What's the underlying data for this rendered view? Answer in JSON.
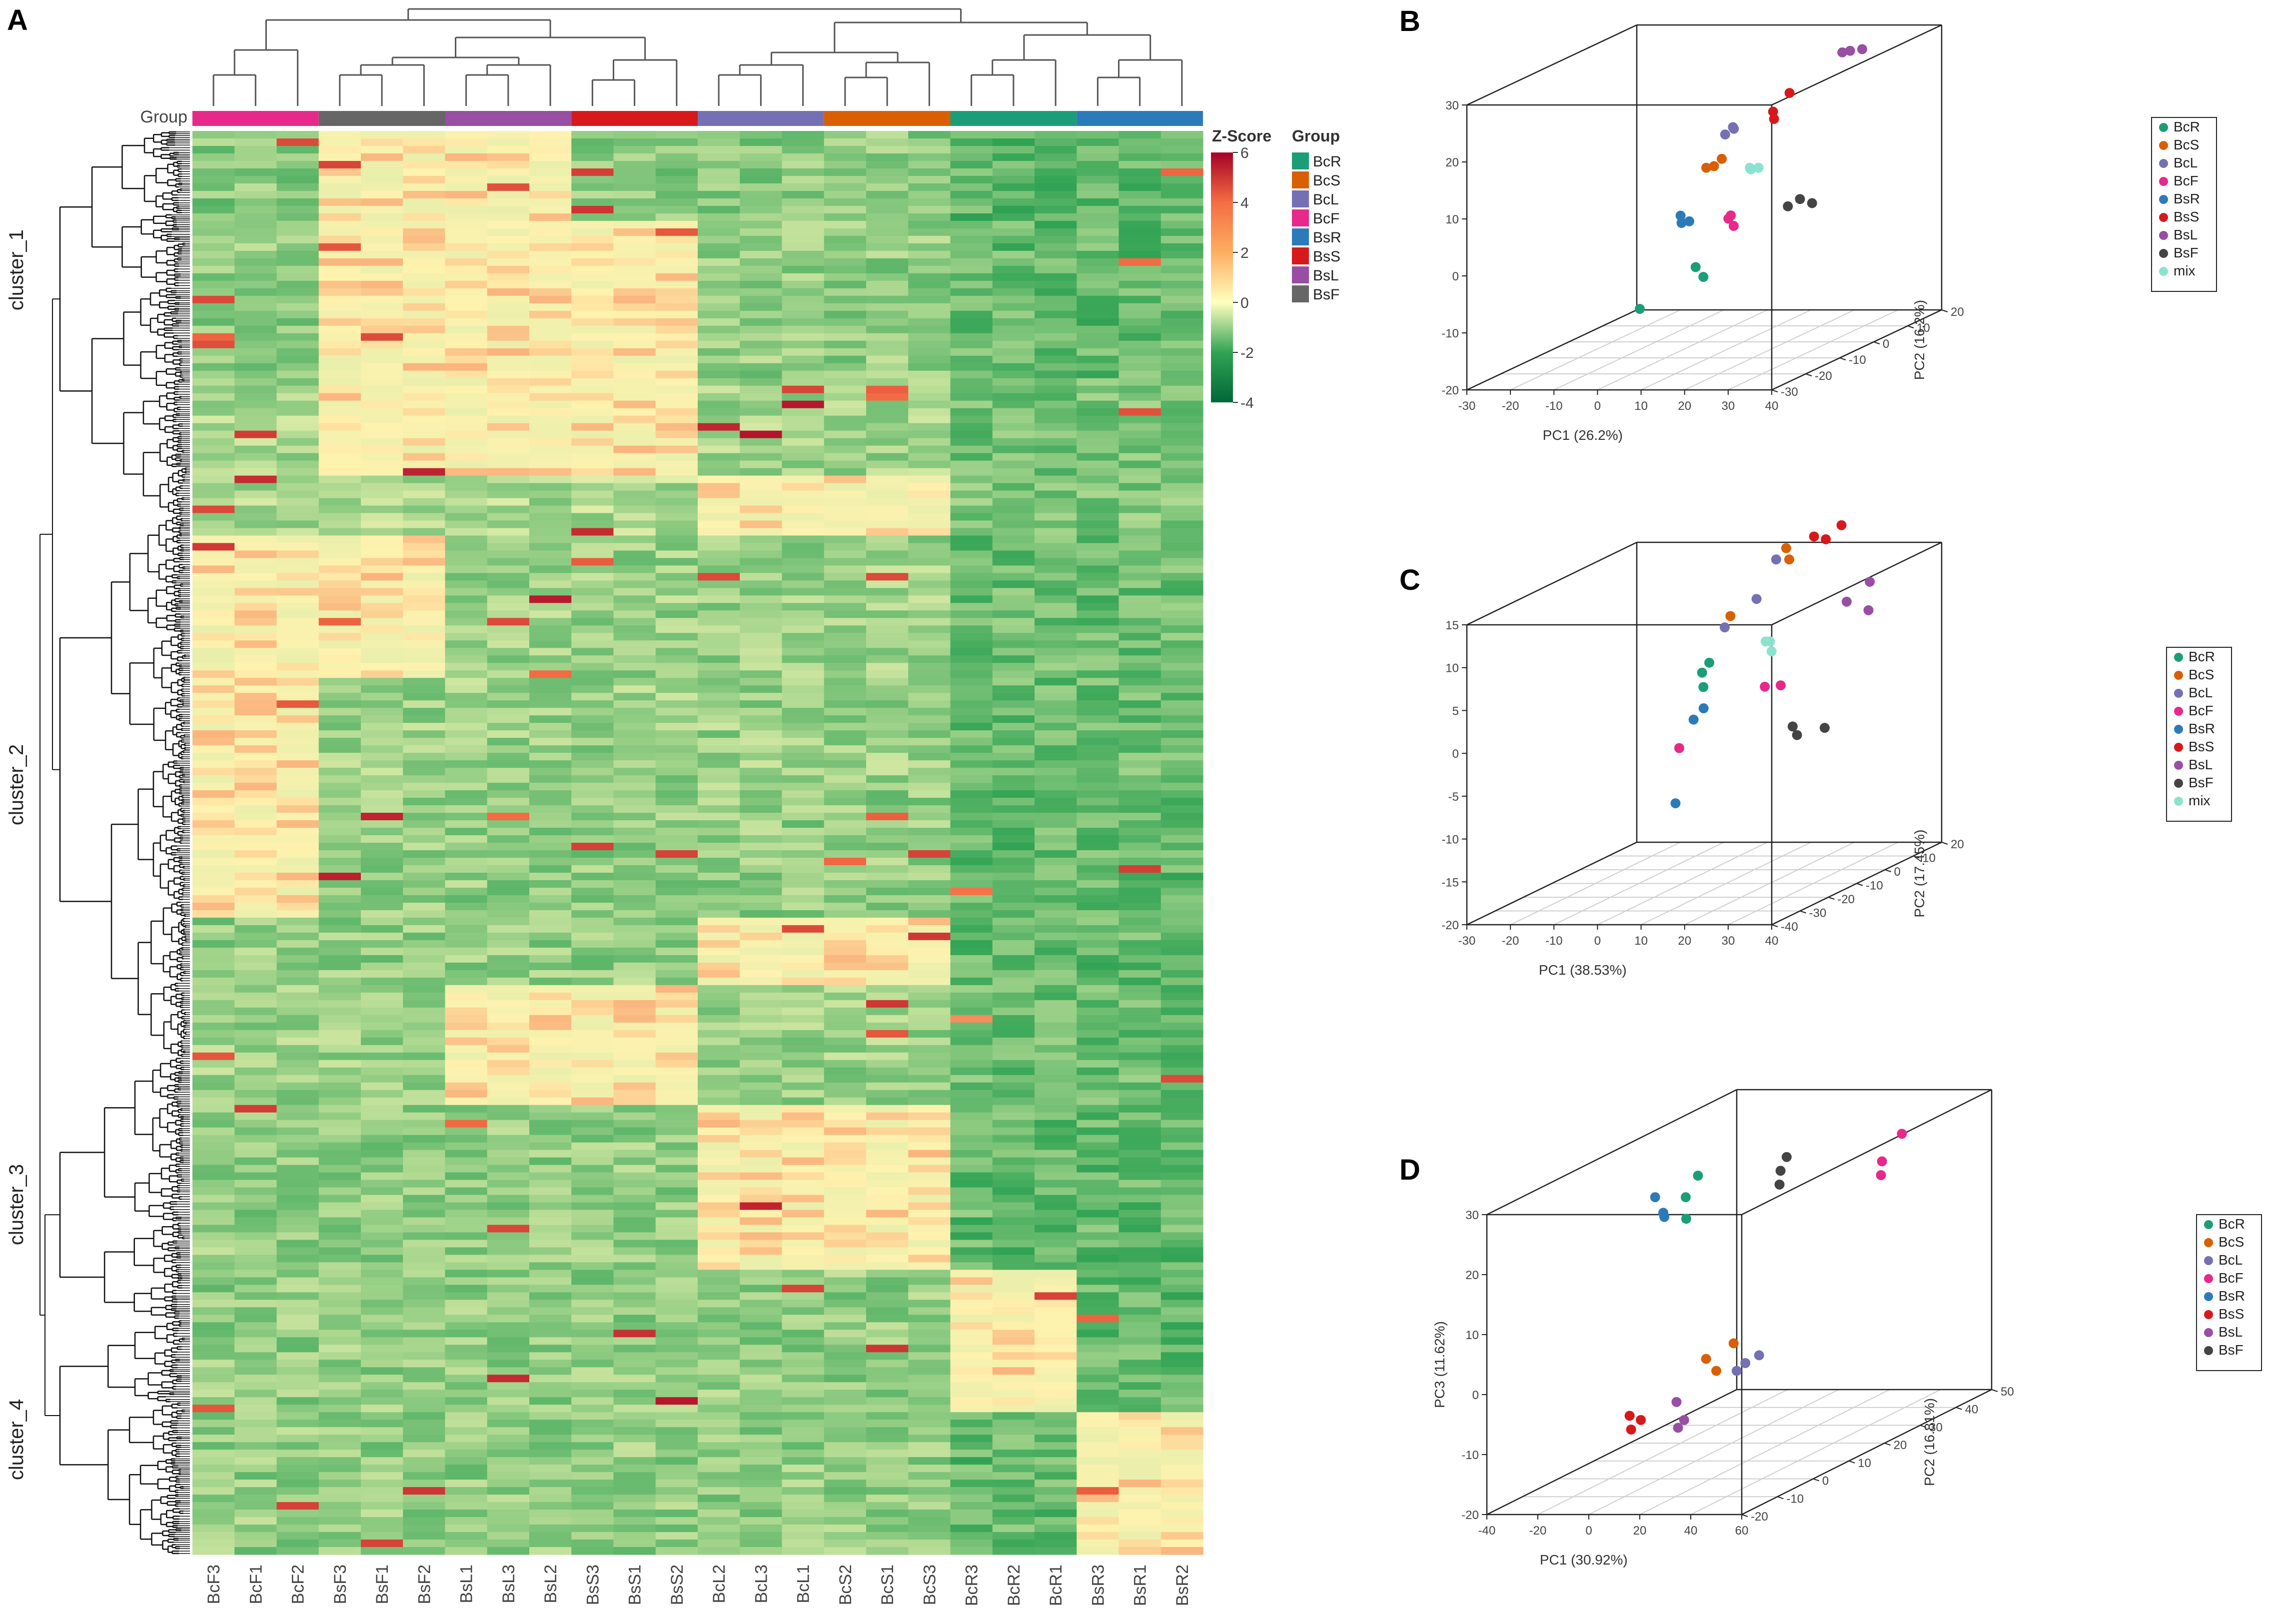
{
  "figure": {
    "panels": [
      "A",
      "B",
      "C",
      "D"
    ]
  },
  "chart_data": [
    {
      "panel": "A",
      "type": "heatmap",
      "title": "",
      "group_bar_label": "Group",
      "colorbar_title": "Z-Score",
      "colorbar_ticks": [
        6,
        4,
        2,
        0,
        -2,
        -4
      ],
      "colorbar_range": [
        -4,
        6
      ],
      "group_legend_title": "Group",
      "group_legend": [
        {
          "name": "BcR",
          "color": "#1b9e77"
        },
        {
          "name": "BcS",
          "color": "#d95f02"
        },
        {
          "name": "BcL",
          "color": "#7570b3"
        },
        {
          "name": "BcF",
          "color": "#e7298a"
        },
        {
          "name": "BsR",
          "color": "#2b7bba"
        },
        {
          "name": "BsS",
          "color": "#d7191c"
        },
        {
          "name": "BsL",
          "color": "#984ea3"
        },
        {
          "name": "BsF",
          "color": "#666666"
        }
      ],
      "column_groups": [
        "BcF",
        "BsF",
        "BsL",
        "BsS",
        "BcL",
        "BcS",
        "BcR",
        "BsR"
      ],
      "columns": [
        "BcF3",
        "BcF1",
        "BcF2",
        "BsF3",
        "BsF1",
        "BsF2",
        "BsL1",
        "BsL3",
        "BsL2",
        "BsS3",
        "BsS1",
        "BsS2",
        "BcL2",
        "BcL3",
        "BcL1",
        "BcS2",
        "BcS1",
        "BcS3",
        "BcR3",
        "BcR2",
        "BcR1",
        "BsR3",
        "BsR1",
        "BsR2"
      ],
      "row_clusters": [
        "cluster_1",
        "cluster_2",
        "cluster_3",
        "cluster_4"
      ]
    },
    {
      "panel": "B",
      "type": "scatter",
      "dims": 3,
      "xlabel": "PC1 (26.2%)",
      "ylabel": "PC2 (16.2%)",
      "zlabel": "",
      "xlim": [
        -30,
        40
      ],
      "xticks": [
        -30,
        -20,
        -10,
        0,
        10,
        20,
        30,
        40
      ],
      "ylim": [
        -30,
        20
      ],
      "yticks": [
        -30,
        -20,
        -10,
        0,
        10,
        20
      ],
      "zlim": [
        -20,
        30
      ],
      "zticks": [
        -20,
        -10,
        0,
        10,
        20,
        30
      ],
      "legend": [
        "BcR",
        "BcS",
        "BcL",
        "BcF",
        "BsR",
        "BsS",
        "BsL",
        "BsF",
        "mix"
      ],
      "series": [
        {
          "name": "BcR",
          "color": "#1b9e77",
          "points": [
            [
              -3,
              5,
              -10
            ],
            [
              -4,
              4,
              -8
            ],
            [
              -2,
              -15,
              -10
            ]
          ]
        },
        {
          "name": "BcS",
          "color": "#d95f02",
          "points": [
            [
              0,
              2,
              10
            ],
            [
              1,
              3,
              10
            ],
            [
              2,
              4,
              11
            ]
          ]
        },
        {
          "name": "BcL",
          "color": "#7570b3",
          "points": [
            [
              2,
              5,
              15
            ],
            [
              3,
              6,
              16
            ],
            [
              4,
              5,
              16
            ]
          ]
        },
        {
          "name": "BcF",
          "color": "#e7298a",
          "points": [
            [
              15,
              -10,
              5
            ],
            [
              16,
              -12,
              5
            ],
            [
              18,
              -13,
              4
            ]
          ]
        },
        {
          "name": "BsR",
          "color": "#2b7bba",
          "points": [
            [
              -2,
              -3,
              3
            ],
            [
              -1,
              -4,
              2
            ],
            [
              0,
              -3,
              2
            ]
          ]
        },
        {
          "name": "BsS",
          "color": "#d7191c",
          "points": [
            [
              13,
              5,
              19
            ],
            [
              14,
              4,
              18
            ],
            [
              16,
              6,
              22
            ]
          ]
        },
        {
          "name": "BsL",
          "color": "#984ea3",
          "points": [
            [
              25,
              10,
              28
            ],
            [
              26,
              11,
              28
            ],
            [
              28,
              12,
              28
            ]
          ]
        },
        {
          "name": "BsF",
          "color": "#444444",
          "points": [
            [
              32,
              -15,
              8
            ],
            [
              34,
              -14,
              9
            ],
            [
              36,
              -13,
              8
            ]
          ]
        },
        {
          "name": "mix",
          "color": "#8be3cf",
          "points": [
            [
              10,
              2,
              10
            ],
            [
              11,
              1,
              10
            ],
            [
              12,
              2,
              10
            ]
          ]
        }
      ]
    },
    {
      "panel": "C",
      "type": "scatter",
      "dims": 3,
      "xlabel": "PC1 (38.53%)",
      "ylabel": "PC2 (17.45%)",
      "zlabel": "",
      "xlim": [
        -30,
        40
      ],
      "xticks": [
        -30,
        -20,
        -10,
        0,
        10,
        20,
        30,
        40
      ],
      "ylim": [
        -40,
        20
      ],
      "yticks": [
        -40,
        -30,
        -20,
        -10,
        0,
        10,
        20
      ],
      "zlim": [
        -20,
        15
      ],
      "zticks": [
        -20,
        -15,
        -10,
        -5,
        0,
        5,
        10,
        15
      ],
      "legend": [
        "BcR",
        "BcS",
        "BcL",
        "BcF",
        "BsR",
        "BsS",
        "BsL",
        "BsF",
        "mix"
      ],
      "series": [
        {
          "name": "BcR",
          "color": "#1b9e77",
          "points": [
            [
              -3,
              2,
              1
            ],
            [
              -2,
              0,
              3
            ],
            [
              -1,
              1,
              4
            ]
          ]
        },
        {
          "name": "BcS",
          "color": "#d95f02",
          "points": [
            [
              -2,
              10,
              8
            ],
            [
              3,
              22,
              14
            ],
            [
              5,
              20,
              13
            ]
          ]
        },
        {
          "name": "BcL",
          "color": "#7570b3",
          "points": [
            [
              -2,
              8,
              7
            ],
            [
              2,
              20,
              13
            ],
            [
              4,
              10,
              10
            ]
          ]
        },
        {
          "name": "BcF",
          "color": "#e7298a",
          "points": [
            [
              -4,
              -5,
              -5
            ],
            [
              15,
              -4,
              2
            ],
            [
              18,
              -3,
              2
            ]
          ]
        },
        {
          "name": "BsR",
          "color": "#2b7bba",
          "points": [
            [
              -2,
              -3,
              -2
            ],
            [
              -1,
              -1,
              -1
            ],
            [
              1,
              -14,
              -10
            ]
          ]
        },
        {
          "name": "BsS",
          "color": "#d7191c",
          "points": [
            [
              12,
              18,
              16
            ],
            [
              16,
              16,
              16
            ],
            [
              17,
              20,
              17
            ]
          ]
        },
        {
          "name": "BsL",
          "color": "#984ea3",
          "points": [
            [
              26,
              8,
              10
            ],
            [
              30,
              10,
              12
            ],
            [
              31,
              8,
              9
            ]
          ]
        },
        {
          "name": "BsF",
          "color": "#444444",
          "points": [
            [
              24,
              -8,
              -2
            ],
            [
              25,
              -8,
              -3
            ],
            [
              32,
              -9,
              -2
            ]
          ]
        },
        {
          "name": "mix",
          "color": "#8be3cf",
          "points": [
            [
              10,
              4,
              6
            ],
            [
              11,
              4,
              6
            ],
            [
              12,
              3,
              5
            ]
          ]
        }
      ]
    },
    {
      "panel": "D",
      "type": "scatter",
      "dims": 3,
      "xlabel": "PC1 (30.92%)",
      "ylabel": "PC2 (16.81%)",
      "zlabel": "PC3 (11.62%)",
      "xlim": [
        -40,
        60
      ],
      "xticks": [
        -40,
        -20,
        0,
        20,
        40,
        60
      ],
      "ylim": [
        -20,
        50
      ],
      "yticks": [
        -20,
        -10,
        0,
        10,
        20,
        30,
        40,
        50
      ],
      "zlim": [
        -20,
        30
      ],
      "zticks": [
        -20,
        -10,
        0,
        10,
        20,
        30
      ],
      "legend": [
        "BcR",
        "BcS",
        "BcL",
        "BcF",
        "BsR",
        "BsS",
        "BsL",
        "BsF"
      ],
      "series": [
        {
          "name": "BcR",
          "color": "#1b9e77",
          "points": [
            [
              -18,
              20,
              21
            ],
            [
              -15,
              18,
              18
            ],
            [
              -16,
              22,
              24
            ]
          ]
        },
        {
          "name": "BcS",
          "color": "#d95f02",
          "points": [
            [
              18,
              0,
              0
            ],
            [
              22,
              0,
              -2
            ],
            [
              26,
              2,
              2
            ]
          ]
        },
        {
          "name": "BcL",
          "color": "#7570b3",
          "points": [
            [
              30,
              0,
              -2
            ],
            [
              32,
              1,
              -1
            ],
            [
              36,
              2,
              0
            ]
          ]
        },
        {
          "name": "BcF",
          "color": "#e7298a",
          "points": [
            [
              45,
              30,
              24
            ],
            [
              46,
              29,
              22
            ],
            [
              50,
              32,
              28
            ]
          ]
        },
        {
          "name": "BsR",
          "color": "#2b7bba",
          "points": [
            [
              -30,
              20,
              21
            ],
            [
              -25,
              19,
              18
            ],
            [
              -24,
              18,
              19
            ]
          ]
        },
        {
          "name": "BsS",
          "color": "#d7191c",
          "points": [
            [
              -5,
              -5,
              -8
            ],
            [
              -3,
              -6,
              -10
            ],
            [
              -2,
              -4,
              -9
            ]
          ]
        },
        {
          "name": "BsL",
          "color": "#984ea3",
          "points": [
            [
              12,
              -4,
              -6
            ],
            [
              14,
              -5,
              -10
            ],
            [
              15,
              -4,
              -9
            ]
          ]
        },
        {
          "name": "BsF",
          "color": "#444444",
          "points": [
            [
              22,
              18,
              26
            ],
            [
              23,
              19,
              28
            ],
            [
              23,
              17,
              24
            ]
          ]
        }
      ]
    }
  ]
}
